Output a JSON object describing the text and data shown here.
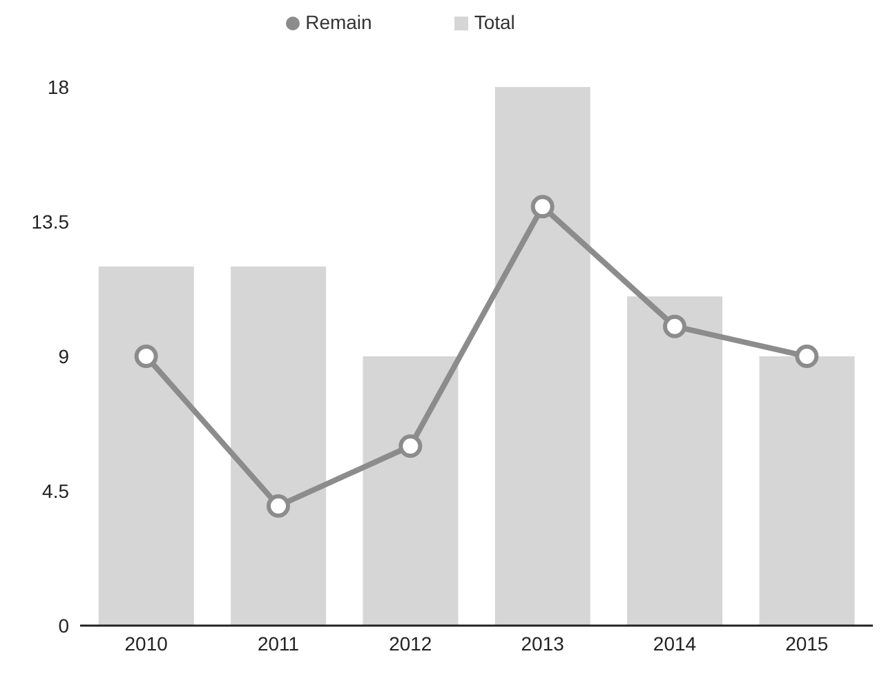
{
  "chart_data": {
    "type": "bar",
    "categories": [
      "2010",
      "2011",
      "2012",
      "2013",
      "2014",
      "2015"
    ],
    "series": [
      {
        "name": "Remain",
        "type": "line",
        "color": "#8c8c8c",
        "values": [
          9,
          4,
          6,
          14,
          10,
          9
        ]
      },
      {
        "name": "Total",
        "color": "#d6d6d6",
        "values": [
          12,
          12,
          9,
          18,
          11,
          9
        ]
      }
    ],
    "ylim": [
      0,
      18
    ],
    "yticks": [
      0,
      4.5,
      9,
      13.5,
      18
    ],
    "legend": "top",
    "marker": "circle",
    "line_style": "solid",
    "grid": false
  }
}
